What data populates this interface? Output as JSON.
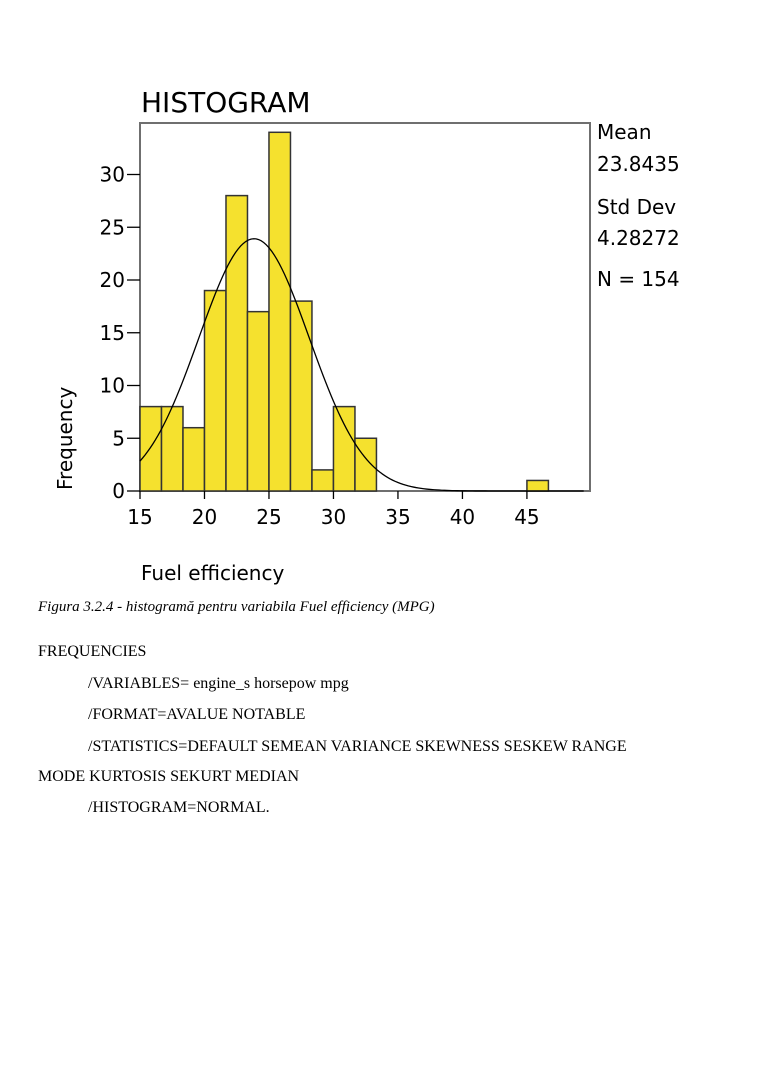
{
  "chart_data": {
    "type": "bar",
    "title": "HISTOGRAM",
    "xlabel": "Fuel efficiency",
    "ylabel": "Frequency",
    "xlim": [
      15,
      50
    ],
    "ylim": [
      0,
      35
    ],
    "xticks": [
      15,
      20,
      25,
      30,
      35,
      40,
      45
    ],
    "yticks": [
      0,
      5,
      10,
      15,
      20,
      25,
      30
    ],
    "bin_width": 1.667,
    "bins": [
      {
        "start": 15.0,
        "end": 16.667,
        "value": 8
      },
      {
        "start": 16.667,
        "end": 18.333,
        "value": 8
      },
      {
        "start": 18.333,
        "end": 20.0,
        "value": 6
      },
      {
        "start": 20.0,
        "end": 21.667,
        "value": 19
      },
      {
        "start": 21.667,
        "end": 23.333,
        "value": 28
      },
      {
        "start": 23.333,
        "end": 25.0,
        "value": 17
      },
      {
        "start": 25.0,
        "end": 26.667,
        "value": 34
      },
      {
        "start": 26.667,
        "end": 28.333,
        "value": 18
      },
      {
        "start": 28.333,
        "end": 30.0,
        "value": 2
      },
      {
        "start": 30.0,
        "end": 31.667,
        "value": 8
      },
      {
        "start": 31.667,
        "end": 33.333,
        "value": 5
      },
      {
        "start": 45.0,
        "end": 46.667,
        "value": 1
      }
    ],
    "normal_curve": {
      "mean": 23.8435,
      "std": 4.28272,
      "n": 154
    },
    "bar_color": "#f5e12e",
    "bar_edge_color": "#333333",
    "stats": {
      "mean_label": "Mean",
      "mean_value": "23.8435",
      "std_label": "Std Dev",
      "std_value": "4.28272",
      "n_text": "N = 154"
    },
    "grid": false
  },
  "caption": "Figura 3.2.4 - histogramă pentru variabila Fuel efficiency (MPG)",
  "syntax": {
    "line1": "FREQUENCIES",
    "line2": "/VARIABLES= engine_s horsepow mpg",
    "line3": "/FORMAT=AVALUE NOTABLE",
    "line4": "/STATISTICS=DEFAULT SEMEAN VARIANCE SKEWNESS SESKEW RANGE",
    "line5": "MODE KURTOSIS SEKURT MEDIAN",
    "line6": "/HISTOGRAM=NORMAL."
  }
}
